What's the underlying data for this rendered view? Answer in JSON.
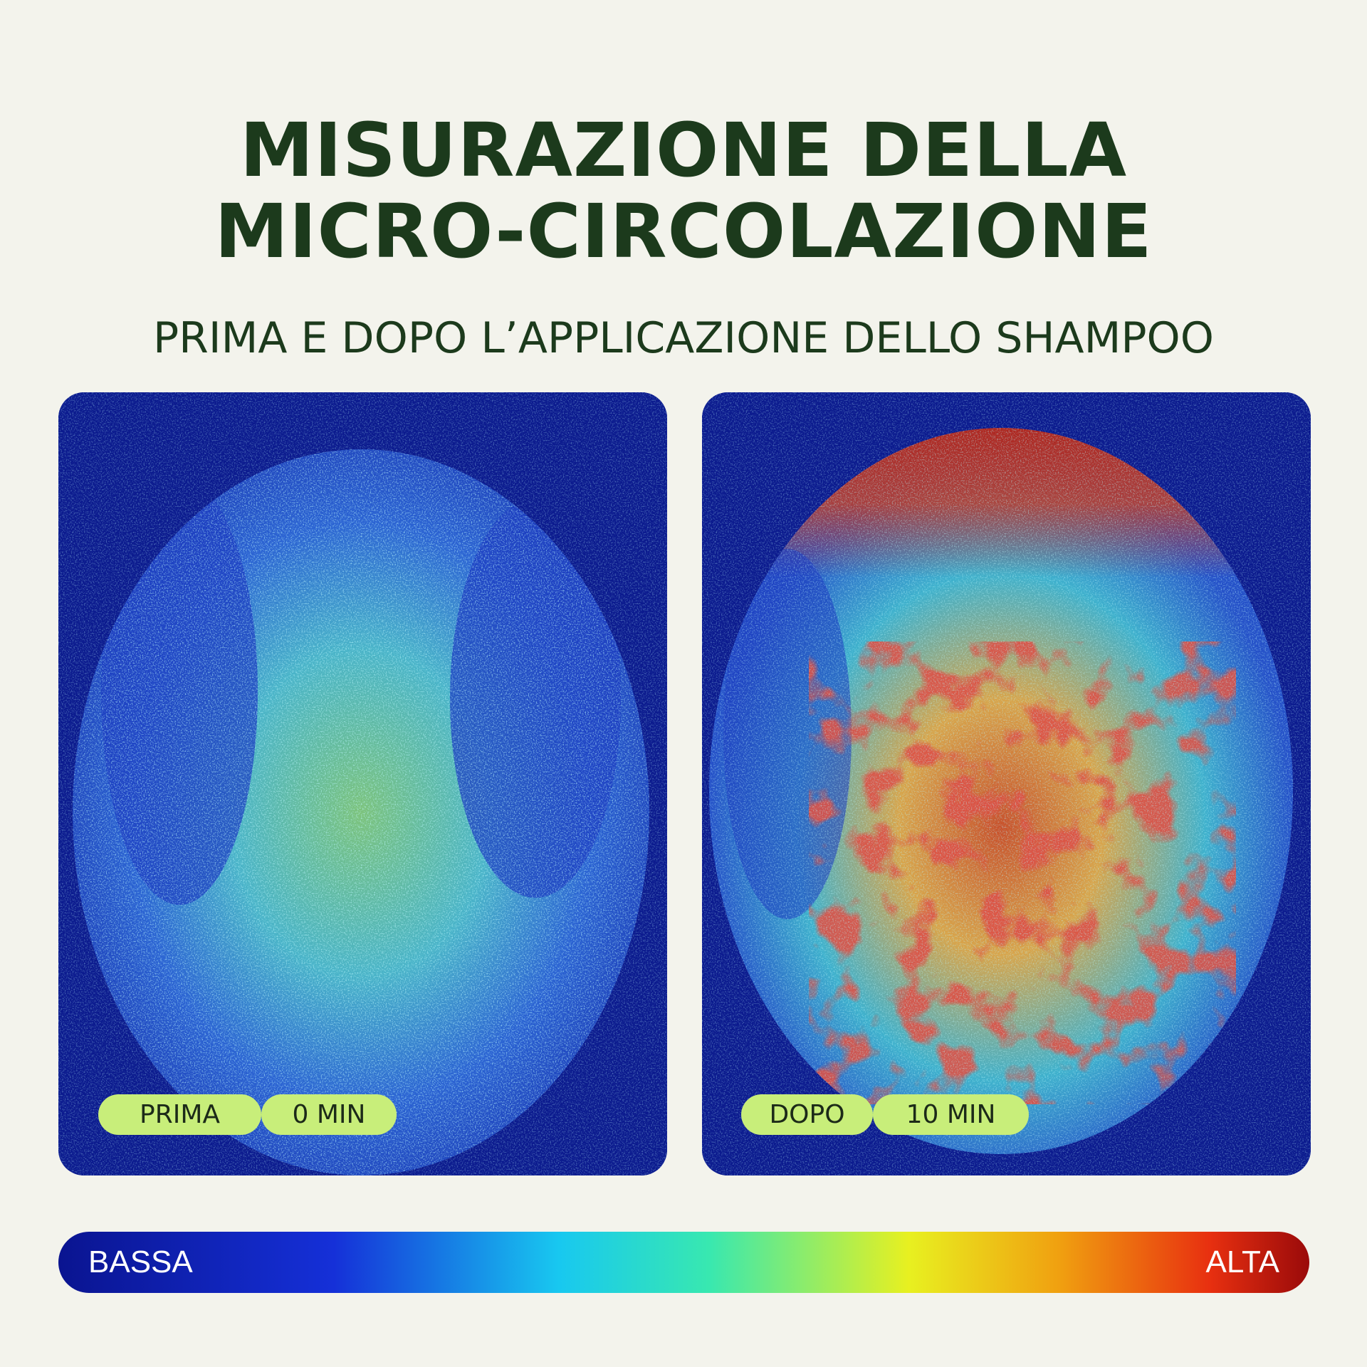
{
  "header": {
    "title_lines": [
      "MISURAZIONE DELLA",
      "MICRO-CIRCOLAZIONE"
    ],
    "subtitle": "PRIMA E DOPO L’APPLICAZIONE DELLO SHAMPOO"
  },
  "panels": [
    {
      "label": "PRIMA",
      "time": "0 MIN"
    },
    {
      "label": "DOPO",
      "time": "10 MIN"
    }
  ],
  "legend": {
    "low": "BASSA",
    "high": "ALTA"
  }
}
